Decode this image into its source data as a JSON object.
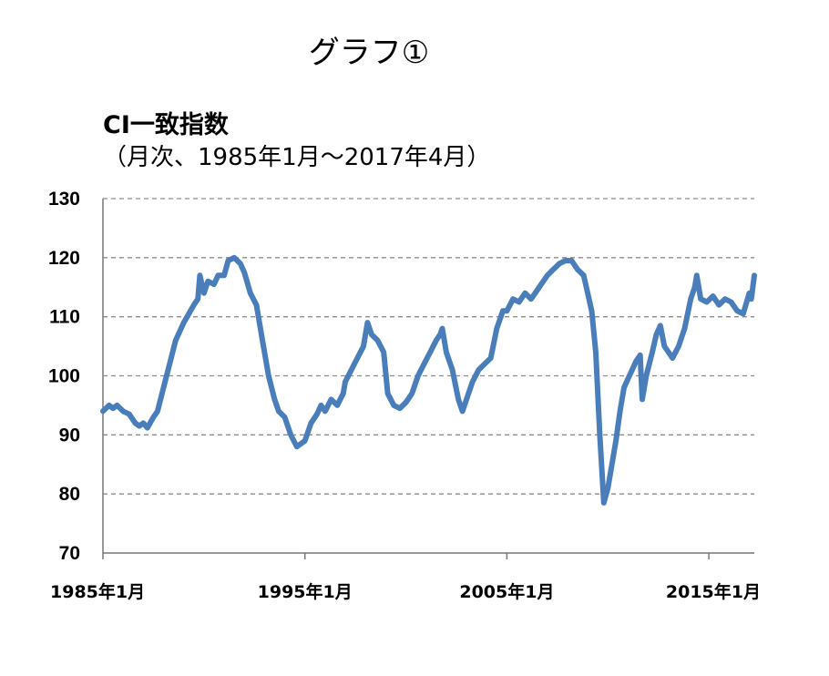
{
  "graph_label": "グラフ①",
  "chart_data": {
    "type": "line",
    "title": "CI一致指数",
    "subtitle": "（月次、1985年1月～2017年4月）",
    "xlabel": "",
    "ylabel": "",
    "ylim": [
      70,
      130
    ],
    "yticks": [
      70,
      80,
      90,
      100,
      110,
      120,
      130
    ],
    "xlim": [
      1985.0,
      2017.25
    ],
    "xticks": [
      {
        "x": 1985.0,
        "label": "1985年1月"
      },
      {
        "x": 1995.0,
        "label": "1995年1月"
      },
      {
        "x": 2005.0,
        "label": "2005年1月"
      },
      {
        "x": 2015.0,
        "label": "2015年1月"
      }
    ],
    "grid": "horizontal dashed",
    "series": [
      {
        "color": "#4a7ebb",
        "points": [
          [
            1985.0,
            94.0
          ],
          [
            1985.3,
            95.0
          ],
          [
            1985.5,
            94.5
          ],
          [
            1985.7,
            95.0
          ],
          [
            1986.0,
            94.0
          ],
          [
            1986.3,
            93.5
          ],
          [
            1986.6,
            92.0
          ],
          [
            1986.8,
            91.5
          ],
          [
            1987.0,
            92.0
          ],
          [
            1987.2,
            91.2
          ],
          [
            1987.5,
            93.0
          ],
          [
            1987.7,
            94.0
          ],
          [
            1988.0,
            98.0
          ],
          [
            1988.3,
            102.0
          ],
          [
            1988.6,
            106.0
          ],
          [
            1989.0,
            109.0
          ],
          [
            1989.5,
            112.0
          ],
          [
            1989.7,
            113.0
          ],
          [
            1989.8,
            117.0
          ],
          [
            1990.0,
            114.0
          ],
          [
            1990.2,
            116.0
          ],
          [
            1990.5,
            115.5
          ],
          [
            1990.7,
            117.0
          ],
          [
            1991.0,
            117.0
          ],
          [
            1991.2,
            119.5
          ],
          [
            1991.5,
            120.0
          ],
          [
            1991.8,
            119.0
          ],
          [
            1992.0,
            117.5
          ],
          [
            1992.3,
            114.0
          ],
          [
            1992.6,
            112.0
          ],
          [
            1992.9,
            106.0
          ],
          [
            1993.2,
            100.0
          ],
          [
            1993.5,
            96.0
          ],
          [
            1993.7,
            94.0
          ],
          [
            1994.0,
            93.0
          ],
          [
            1994.3,
            90.0
          ],
          [
            1994.6,
            88.0
          ],
          [
            1994.8,
            88.5
          ],
          [
            1995.0,
            89.0
          ],
          [
            1995.3,
            92.0
          ],
          [
            1995.6,
            93.5
          ],
          [
            1995.8,
            95.0
          ],
          [
            1996.0,
            94.0
          ],
          [
            1996.3,
            96.0
          ],
          [
            1996.6,
            95.0
          ],
          [
            1996.9,
            97.0
          ],
          [
            1997.0,
            99.0
          ],
          [
            1997.3,
            101.0
          ],
          [
            1997.6,
            103.0
          ],
          [
            1997.9,
            105.0
          ],
          [
            1998.1,
            109.0
          ],
          [
            1998.3,
            107.0
          ],
          [
            1998.6,
            106.0
          ],
          [
            1998.9,
            104.0
          ],
          [
            1999.1,
            97.0
          ],
          [
            1999.4,
            95.0
          ],
          [
            1999.7,
            94.5
          ],
          [
            2000.0,
            95.5
          ],
          [
            2000.3,
            97.0
          ],
          [
            2000.6,
            100.0
          ],
          [
            2000.9,
            102.0
          ],
          [
            2001.2,
            104.0
          ],
          [
            2001.5,
            106.0
          ],
          [
            2001.7,
            107.0
          ],
          [
            2001.8,
            108.0
          ],
          [
            2002.0,
            104.0
          ],
          [
            2002.3,
            101.0
          ],
          [
            2002.6,
            96.0
          ],
          [
            2002.8,
            94.0
          ],
          [
            2003.0,
            96.0
          ],
          [
            2003.3,
            99.0
          ],
          [
            2003.6,
            101.0
          ],
          [
            2003.9,
            102.0
          ],
          [
            2004.2,
            103.0
          ],
          [
            2004.5,
            108.0
          ],
          [
            2004.8,
            111.0
          ],
          [
            2005.0,
            111.0
          ],
          [
            2005.3,
            113.0
          ],
          [
            2005.6,
            112.5
          ],
          [
            2005.9,
            114.0
          ],
          [
            2006.2,
            113.0
          ],
          [
            2006.5,
            114.5
          ],
          [
            2006.8,
            116.0
          ],
          [
            2007.0,
            117.0
          ],
          [
            2007.3,
            118.0
          ],
          [
            2007.6,
            119.0
          ],
          [
            2007.9,
            119.5
          ],
          [
            2008.2,
            119.5
          ],
          [
            2008.5,
            118.0
          ],
          [
            2008.8,
            117.0
          ],
          [
            2009.0,
            114.0
          ],
          [
            2009.2,
            111.0
          ],
          [
            2009.4,
            104.0
          ],
          [
            2009.6,
            90.0
          ],
          [
            2009.8,
            78.5
          ],
          [
            2010.0,
            81.0
          ],
          [
            2010.2,
            85.0
          ],
          [
            2010.4,
            89.0
          ],
          [
            2010.6,
            94.0
          ],
          [
            2010.8,
            98.0
          ],
          [
            2011.0,
            99.5
          ],
          [
            2011.2,
            101.0
          ],
          [
            2011.4,
            102.5
          ],
          [
            2011.6,
            103.5
          ],
          [
            2011.7,
            96.0
          ],
          [
            2011.9,
            100.0
          ],
          [
            2012.2,
            104.0
          ],
          [
            2012.4,
            107.0
          ],
          [
            2012.6,
            108.5
          ],
          [
            2012.8,
            105.0
          ],
          [
            2013.0,
            104.0
          ],
          [
            2013.2,
            103.0
          ],
          [
            2013.5,
            105.0
          ],
          [
            2013.8,
            108.0
          ],
          [
            2014.1,
            113.0
          ],
          [
            2014.3,
            115.0
          ],
          [
            2014.4,
            117.0
          ],
          [
            2014.6,
            113.0
          ],
          [
            2014.9,
            112.5
          ],
          [
            2015.2,
            113.5
          ],
          [
            2015.5,
            112.0
          ],
          [
            2015.8,
            113.0
          ],
          [
            2016.1,
            112.5
          ],
          [
            2016.4,
            111.0
          ],
          [
            2016.7,
            110.5
          ],
          [
            2017.0,
            114.0
          ],
          [
            2017.1,
            113.0
          ],
          [
            2017.25,
            117.0
          ]
        ]
      }
    ]
  }
}
